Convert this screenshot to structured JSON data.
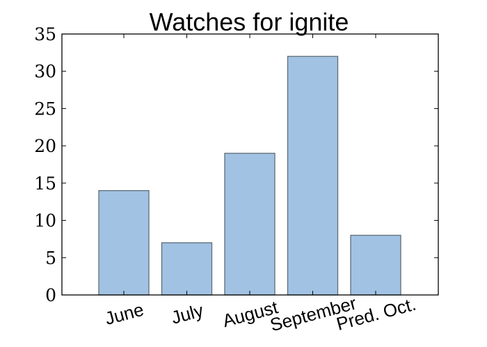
{
  "chart_data": {
    "type": "bar",
    "title": "Watches for ignite",
    "xlabel": "",
    "ylabel": "",
    "categories": [
      "June",
      "July",
      "August",
      "September",
      "Pred. Oct."
    ],
    "values": [
      14,
      7,
      19,
      32,
      8
    ],
    "ylim": [
      0,
      35
    ],
    "yticks": [
      0,
      5,
      10,
      15,
      20,
      25,
      30,
      35
    ],
    "ytick_labels": [
      "0",
      "5",
      "10",
      "15",
      "20",
      "25",
      "30",
      "35"
    ],
    "grid": false,
    "legend": "none",
    "colors": {
      "bar_fill": "#a1c2e3",
      "bar_edge": "#5f6b76",
      "axes": "#000000"
    }
  }
}
